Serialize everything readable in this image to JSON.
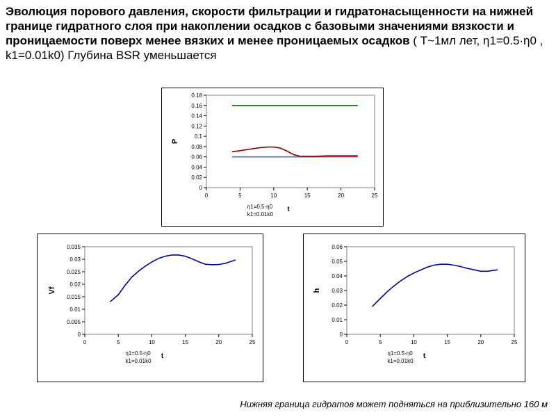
{
  "title": {
    "bold": "Эволюция порового давления, скорости фильтрации и гидратонасыщенности на нижней границе гидратного слоя при накоплении осадков с базовыми значениями вязкости и проницаемости поверх менее вязких и менее проницаемых осадков",
    "normal": " ( T~1мл лет, η1=0.5·η0 , k1=0.01k0) Глубина BSR уменьшается"
  },
  "footer": "Нижняя граница гидратов может подняться на приблизительно 160 м",
  "chart_data": [
    {
      "type": "line",
      "ylabel": "P",
      "xlabel": "t",
      "xlim": [
        0,
        25
      ],
      "ylim": [
        0,
        0.18
      ],
      "xticks": [
        "0",
        "5",
        "10",
        "15",
        "20",
        "25"
      ],
      "yticks": [
        "0",
        "0.02",
        "0.04",
        "0.06",
        "0.08",
        "0.1",
        "0.12",
        "0.14",
        "0.16",
        "0.18"
      ],
      "annotation": [
        "η1=0.5·η0",
        "k1=0.01k0"
      ],
      "series": [
        {
          "color": "#008000",
          "x": [
            3.8,
            22.5
          ],
          "y": [
            0.16,
            0.16
          ]
        },
        {
          "color": "#4472c4",
          "x": [
            3.8,
            22.5
          ],
          "y": [
            0.06,
            0.06
          ]
        },
        {
          "color": "#800000",
          "x": [
            3.8,
            5,
            6,
            7,
            8,
            9,
            10,
            11,
            12,
            13,
            14,
            15,
            16,
            18,
            20,
            22.5
          ],
          "y": [
            0.07,
            0.072,
            0.074,
            0.076,
            0.078,
            0.079,
            0.079,
            0.077,
            0.071,
            0.064,
            0.061,
            0.061,
            0.061,
            0.062,
            0.062,
            0.062
          ]
        }
      ]
    },
    {
      "type": "line",
      "ylabel": "Vf",
      "xlabel": "t",
      "xlim": [
        0,
        25
      ],
      "ylim": [
        0,
        0.035
      ],
      "xticks": [
        "0",
        "5",
        "10",
        "15",
        "20",
        "25"
      ],
      "yticks": [
        "0",
        "0.005",
        "0.01",
        "0.015",
        "0.02",
        "0.025",
        "0.03",
        "0.035"
      ],
      "annotation": [
        "η1=0.5·η0",
        "k1=0.01k0"
      ],
      "series": [
        {
          "color": "#00008b",
          "x": [
            3.8,
            5,
            6,
            7,
            8,
            9,
            10,
            11,
            12,
            13,
            14,
            15,
            16,
            17,
            18,
            19,
            20,
            21,
            22.5
          ],
          "y": [
            0.013,
            0.0158,
            0.0195,
            0.0228,
            0.0252,
            0.0272,
            0.0289,
            0.0303,
            0.0312,
            0.0317,
            0.0317,
            0.0312,
            0.0302,
            0.029,
            0.028,
            0.0278,
            0.0279,
            0.0284,
            0.0297
          ]
        }
      ]
    },
    {
      "type": "line",
      "ylabel": "h",
      "xlabel": "t",
      "xlim": [
        0,
        25
      ],
      "ylim": [
        0,
        0.06
      ],
      "xticks": [
        "0",
        "5",
        "10",
        "15",
        "20",
        "25"
      ],
      "yticks": [
        "0",
        "0.01",
        "0.02",
        "0.03",
        "0.04",
        "0.05",
        "0.06"
      ],
      "annotation": [
        "η1=0.5·η0",
        "k1=0.01k0"
      ],
      "series": [
        {
          "color": "#00008b",
          "x": [
            3.8,
            5,
            6,
            7,
            8,
            9,
            10,
            11,
            12,
            13,
            14,
            15,
            16,
            17,
            18,
            19,
            20,
            21,
            22.5
          ],
          "y": [
            0.019,
            0.0245,
            0.029,
            0.033,
            0.0365,
            0.0395,
            0.042,
            0.044,
            0.046,
            0.0474,
            0.048,
            0.048,
            0.0474,
            0.0464,
            0.0452,
            0.0442,
            0.0432,
            0.0432,
            0.0442
          ]
        }
      ]
    }
  ]
}
